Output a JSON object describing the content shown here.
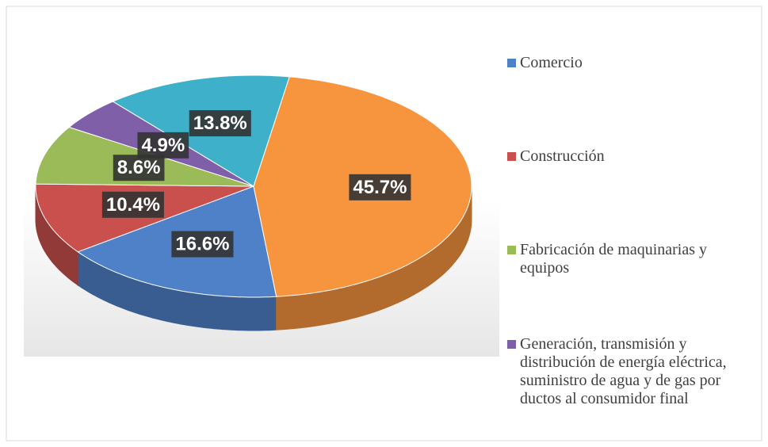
{
  "chart_data": {
    "type": "pie",
    "categories": [
      "Comercio",
      "Construcción",
      "Fabricación de maquinarias y equipos",
      "Generación, transmisión y distribución de energía eléctrica, suministro de agua y de gas por ductos al consumidor final",
      null,
      null
    ],
    "values": [
      16.6,
      10.4,
      8.6,
      4.9,
      13.8,
      45.7
    ],
    "value_labels": [
      "16.6%",
      "10.4%",
      "8.6%",
      "4.9%",
      "13.8%",
      "45.7%"
    ],
    "colors": [
      "#4f81c9",
      "#c9504d",
      "#9bbb59",
      "#7f5fa8",
      "#3fb0c9",
      "#f7953f"
    ],
    "legend": "right"
  }
}
